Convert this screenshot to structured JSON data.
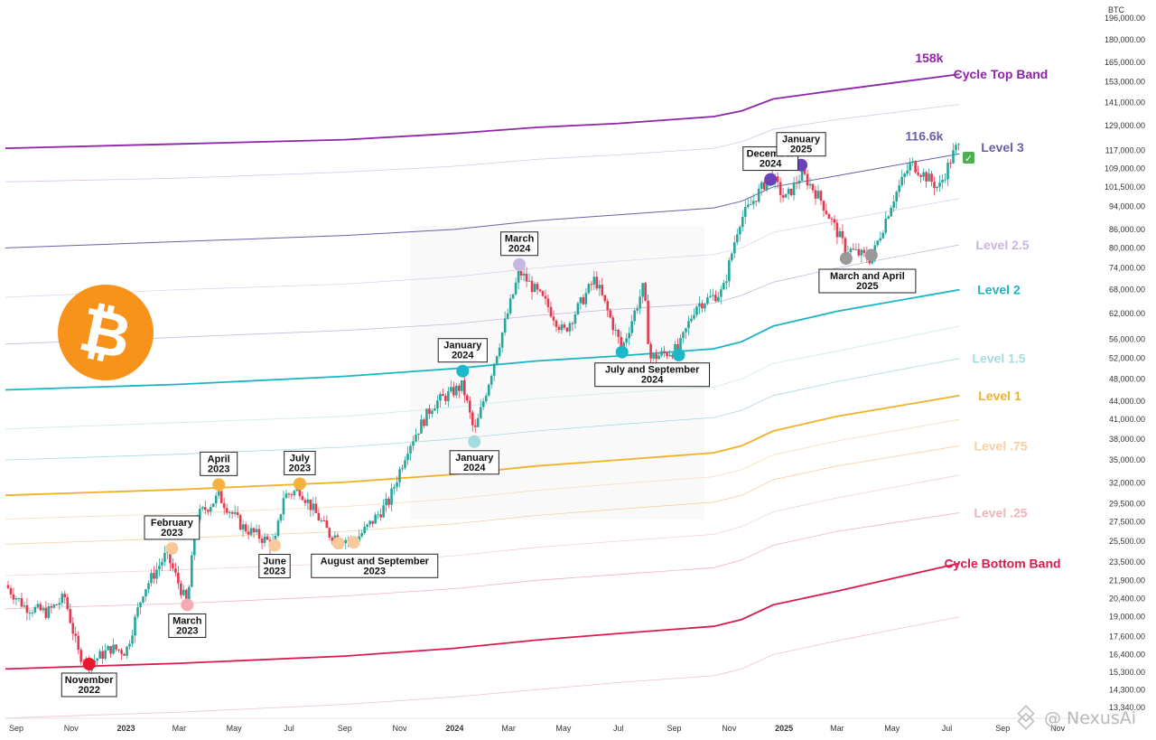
{
  "chart_data": {
    "type": "line",
    "currency_label": "BTC",
    "y_scale": "log",
    "ylim": [
      13340,
      196000
    ],
    "xlim": [
      "2022-08-20",
      "2025-12-05"
    ],
    "y_ticks": [
      "196,000.00",
      "180,000.00",
      "165,000.00",
      "153,000.00",
      "141,000.00",
      "129,000.00",
      "117,000.00",
      "109,000.00",
      "101,500.00",
      "94,000.00",
      "86,000.00",
      "80,000.00",
      "74,000.00",
      "68,000.00",
      "62,000.00",
      "56,000.00",
      "52,000.00",
      "48,000.00",
      "44,000.00",
      "41,000.00",
      "38,000.00",
      "35,000.00",
      "32,000.00",
      "29,500.00",
      "27,500.00",
      "25,500.00",
      "23,500.00",
      "21,900.00",
      "20,400.00",
      "19,000.00",
      "17,600.00",
      "16,400.00",
      "15,300.00",
      "14,300.00",
      "13,340.00"
    ],
    "x_ticks": [
      {
        "label": "Sep",
        "date": "2022-09-01",
        "year": false
      },
      {
        "label": "Nov",
        "date": "2022-11-01",
        "year": false
      },
      {
        "label": "2023",
        "date": "2023-01-01",
        "year": true
      },
      {
        "label": "Mar",
        "date": "2023-03-01",
        "year": false
      },
      {
        "label": "May",
        "date": "2023-05-01",
        "year": false
      },
      {
        "label": "Jul",
        "date": "2023-07-01",
        "year": false
      },
      {
        "label": "Sep",
        "date": "2023-09-01",
        "year": false
      },
      {
        "label": "Nov",
        "date": "2023-11-01",
        "year": false
      },
      {
        "label": "2024",
        "date": "2024-01-01",
        "year": true
      },
      {
        "label": "Mar",
        "date": "2024-03-01",
        "year": false
      },
      {
        "label": "May",
        "date": "2024-05-01",
        "year": false
      },
      {
        "label": "Jul",
        "date": "2024-07-01",
        "year": false
      },
      {
        "label": "Sep",
        "date": "2024-09-01",
        "year": false
      },
      {
        "label": "Nov",
        "date": "2024-11-01",
        "year": false
      },
      {
        "label": "2025",
        "date": "2025-01-01",
        "year": true
      },
      {
        "label": "Mar",
        "date": "2025-03-01",
        "year": false
      },
      {
        "label": "May",
        "date": "2025-05-01",
        "year": false
      },
      {
        "label": "Jul",
        "date": "2025-07-01",
        "year": false
      },
      {
        "label": "Sep",
        "date": "2025-09-01",
        "year": false
      },
      {
        "label": "Nov",
        "date": "2025-11-01",
        "year": false
      }
    ],
    "band_dates": [
      "2022-08-20",
      "2023-03-01",
      "2023-09-01",
      "2024-01-01",
      "2024-04-01",
      "2024-07-01",
      "2024-10-15",
      "2024-11-15",
      "2024-12-20",
      "2025-03-01",
      "2025-07-15"
    ],
    "bands": [
      {
        "name": "Cycle Top Band",
        "color": "#8e24aa",
        "width": 1.8,
        "main": true,
        "values": [
          118000,
          120000,
          122000,
          125000,
          128000,
          130000,
          133500,
          136500,
          143000,
          148000,
          157500
        ]
      },
      {
        "name": "",
        "color": "#d9c6e6",
        "width": 0.8,
        "main": false,
        "values": [
          103500,
          105000,
          107500,
          110000,
          113000,
          115000,
          118000,
          121000,
          127000,
          132000,
          140000
        ]
      },
      {
        "name": "Level 3",
        "color": "#6a5fa8",
        "width": 1.0,
        "main": true,
        "values": [
          80000,
          82000,
          84000,
          86000,
          89000,
          91000,
          93500,
          96000,
          101500,
          106000,
          115500
        ]
      },
      {
        "name": "",
        "color": "#ddd4ea",
        "width": 0.8,
        "main": false,
        "values": [
          66000,
          68000,
          69500,
          71500,
          74000,
          76000,
          78000,
          80000,
          85000,
          89000,
          97000
        ]
      },
      {
        "name": "Level 2.5",
        "color": "#c9b6e0",
        "width": 0.8,
        "main": false,
        "values": [
          55000,
          56500,
          58000,
          59500,
          61500,
          63000,
          64500,
          66500,
          70000,
          74000,
          81000
        ]
      },
      {
        "name": "Level 2",
        "color": "#19b5c3",
        "width": 1.8,
        "main": true,
        "values": [
          46000,
          47000,
          48500,
          50000,
          51500,
          52500,
          54000,
          55500,
          59000,
          62500,
          68000
        ]
      },
      {
        "name": "",
        "color": "#cde9ec",
        "width": 0.8,
        "main": false,
        "values": [
          39500,
          40500,
          41500,
          43000,
          44500,
          45500,
          46500,
          48000,
          51000,
          53500,
          59000
        ]
      },
      {
        "name": "Level 1.5",
        "color": "#a6dcde",
        "width": 0.8,
        "main": false,
        "values": [
          35000,
          35800,
          36800,
          38000,
          39200,
          40200,
          41300,
          42500,
          45000,
          47500,
          52000
        ]
      },
      {
        "name": "Level 1",
        "color": "#f2b029",
        "width": 1.8,
        "main": true,
        "values": [
          30500,
          31200,
          32100,
          33100,
          34200,
          35000,
          36000,
          37000,
          39200,
          41500,
          45000
        ]
      },
      {
        "name": "",
        "color": "#f6ddb6",
        "width": 0.8,
        "main": false,
        "values": [
          27800,
          28400,
          29200,
          30100,
          31100,
          31900,
          32800,
          33700,
          35700,
          37700,
          41000
        ]
      },
      {
        "name": "Level .75",
        "color": "#f7cfa2",
        "width": 0.8,
        "main": false,
        "values": [
          25200,
          25800,
          26500,
          27300,
          28200,
          28900,
          29700,
          30500,
          32400,
          34200,
          37000
        ]
      },
      {
        "name": "",
        "color": "#f3d0d4",
        "width": 0.8,
        "main": false,
        "values": [
          22300,
          22800,
          23400,
          24100,
          24900,
          25500,
          26200,
          27000,
          28600,
          30200,
          33000
        ]
      },
      {
        "name": "Level .25",
        "color": "#f2b3bd",
        "width": 0.8,
        "main": false,
        "values": [
          19600,
          20000,
          20600,
          21200,
          21900,
          22400,
          23000,
          23700,
          25100,
          26500,
          28500
        ]
      },
      {
        "name": "Cycle Bottom Band",
        "color": "#d81b4f",
        "width": 1.8,
        "main": true,
        "values": [
          15500,
          15850,
          16300,
          16800,
          17350,
          17800,
          18300,
          18800,
          19900,
          21000,
          23400
        ]
      },
      {
        "name": "",
        "color": "#f2c3cb",
        "width": 0.8,
        "main": false,
        "values": [
          12800,
          13100,
          13500,
          13900,
          14300,
          14700,
          15100,
          15500,
          16400,
          17300,
          19000
        ]
      }
    ],
    "price_series": {
      "name": "BTC",
      "type": "candlestick-approx",
      "dates": [
        "2022-08-20",
        "2022-09-10",
        "2022-10-05",
        "2022-10-25",
        "2022-11-09",
        "2022-11-21",
        "2022-12-15",
        "2023-01-01",
        "2023-01-20",
        "2023-02-15",
        "2023-03-10",
        "2023-03-20",
        "2023-04-14",
        "2023-05-10",
        "2023-06-15",
        "2023-06-25",
        "2023-07-13",
        "2023-08-15",
        "2023-09-11",
        "2023-09-25",
        "2023-10-20",
        "2023-11-10",
        "2023-12-08",
        "2024-01-10",
        "2024-01-23",
        "2024-02-15",
        "2024-03-13",
        "2024-04-13",
        "2024-05-01",
        "2024-06-05",
        "2024-07-05",
        "2024-07-29",
        "2024-08-05",
        "2024-09-06",
        "2024-09-25",
        "2024-10-25",
        "2024-11-12",
        "2024-12-17",
        "2025-01-02",
        "2025-01-21",
        "2025-02-10",
        "2025-03-10",
        "2025-04-08",
        "2025-05-01",
        "2025-05-22",
        "2025-06-22",
        "2025-07-10",
        "2025-07-14"
      ],
      "values": [
        21500,
        19800,
        19300,
        20500,
        16500,
        15800,
        16800,
        16600,
        21000,
        24300,
        19900,
        28000,
        30400,
        27000,
        25100,
        30400,
        31200,
        26200,
        25500,
        26800,
        29800,
        36800,
        43500,
        46800,
        38800,
        52000,
        73000,
        64000,
        57500,
        71000,
        54000,
        69000,
        52000,
        54000,
        64000,
        67500,
        88500,
        106500,
        96500,
        107000,
        97000,
        80000,
        76500,
        96000,
        111500,
        101000,
        117500,
        118500
      ]
    },
    "value_labels": [
      {
        "text": "158k",
        "value": 158000,
        "date": "2025-07-01",
        "color": "#8e24aa"
      },
      {
        "text": "116.6k",
        "value": 116600,
        "date": "2025-07-01",
        "color": "#6a5fa8"
      }
    ],
    "markers": [
      {
        "date": "2022-11-21",
        "value": 15800,
        "color": "#e8172f",
        "label_lines": [
          "November",
          "2022"
        ],
        "label_pos": "below"
      },
      {
        "date": "2023-02-21",
        "value": 24800,
        "color": "#f8c99a",
        "label_lines": [
          "February",
          "2023"
        ],
        "label_pos": "above"
      },
      {
        "date": "2023-03-10",
        "value": 19900,
        "color": "#f4aab5",
        "label_lines": [
          "March",
          "2023"
        ],
        "label_pos": "below"
      },
      {
        "date": "2023-04-14",
        "value": 31800,
        "color": "#f4b13c",
        "label_lines": [
          "April",
          "2023"
        ],
        "label_pos": "above"
      },
      {
        "date": "2023-06-15",
        "value": 25100,
        "color": "#f8c99a",
        "label_lines": [
          "June",
          "2023"
        ],
        "label_pos": "below"
      },
      {
        "date": "2023-07-13",
        "value": 31900,
        "color": "#f4b13c",
        "label_lines": [
          "July",
          "2023"
        ],
        "label_pos": "above"
      },
      {
        "date": "2023-08-25",
        "value": 25300,
        "color": "#f8c99a",
        "label_lines": [
          "August and September",
          "2023"
        ],
        "label_pos": "below-right"
      },
      {
        "date": "2023-09-11",
        "value": 25400,
        "color": "#f8c99a",
        "label_lines": [],
        "label_pos": "none"
      },
      {
        "date": "2024-01-10",
        "value": 49500,
        "color": "#1ab8c8",
        "label_lines": [
          "January",
          "2024"
        ],
        "label_pos": "above"
      },
      {
        "date": "2024-01-23",
        "value": 37600,
        "color": "#a2dcde",
        "label_lines": [
          "January",
          "2024"
        ],
        "label_pos": "below"
      },
      {
        "date": "2024-03-13",
        "value": 75000,
        "color": "#c8b6e0",
        "label_lines": [
          "March",
          "2024"
        ],
        "label_pos": "above"
      },
      {
        "date": "2024-07-05",
        "value": 53300,
        "color": "#1ab8c8",
        "label_lines": [
          "July and September",
          "2024"
        ],
        "label_pos": "below-right"
      },
      {
        "date": "2024-09-06",
        "value": 52700,
        "color": "#1ab8c8",
        "label_lines": [],
        "label_pos": "none"
      },
      {
        "date": "2024-12-17",
        "value": 104500,
        "color": "#6c42b8",
        "label_lines": [
          "December",
          "2024"
        ],
        "label_pos": "above"
      },
      {
        "date": "2025-01-20",
        "value": 110500,
        "color": "#6c42b8",
        "label_lines": [
          "January",
          "2025"
        ],
        "label_pos": "above"
      },
      {
        "date": "2025-03-11",
        "value": 76800,
        "color": "#999999",
        "label_lines": [
          "March and April",
          "2025"
        ],
        "label_pos": "below-right"
      },
      {
        "date": "2025-04-08",
        "value": 77800,
        "color": "#999999",
        "label_lines": [],
        "label_pos": "none"
      }
    ],
    "annotations": {
      "check_mark": "✓",
      "watermark": "@ NexusAi"
    },
    "logo": {
      "name": "bitcoin-logo-icon",
      "glyph": "₿",
      "color": "#f7931a"
    },
    "grid": false,
    "legend": "right"
  }
}
